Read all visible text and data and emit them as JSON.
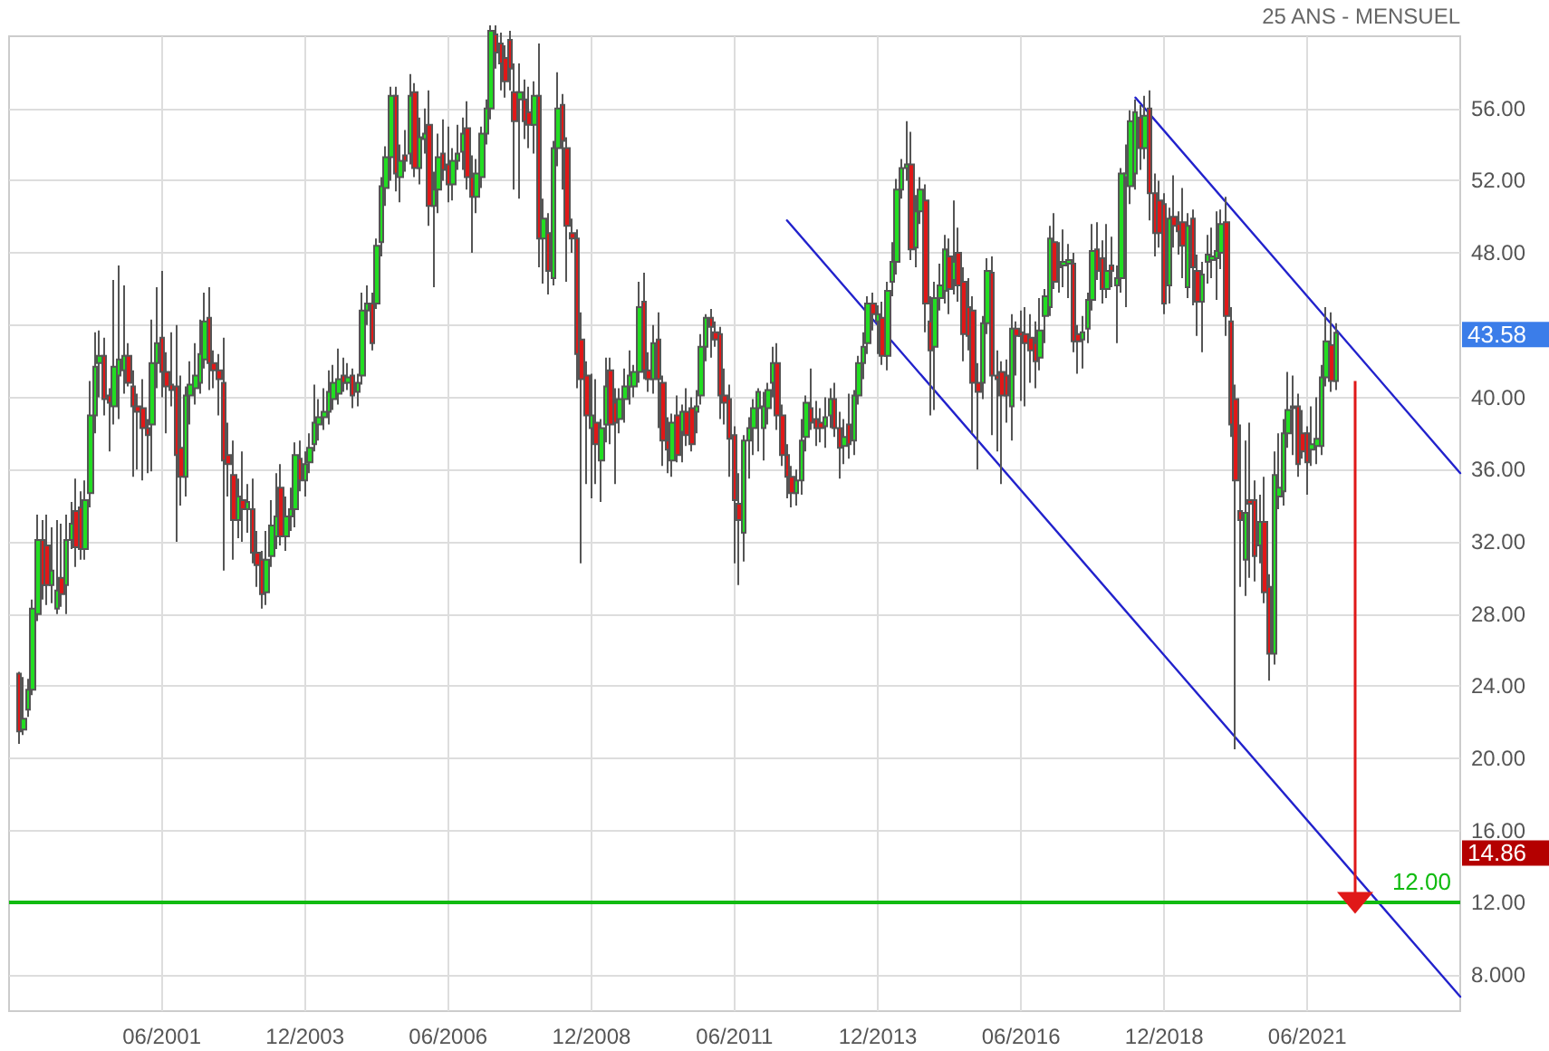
{
  "chart_data": {
    "type": "candlestick",
    "annotations": [
      "25 ANS - MENSUEL",
      "43.58",
      "14.86"
    ],
    "xlim": [
      "1998-10",
      "2024-02"
    ],
    "xticks": [
      {
        "value": "2001-06",
        "label": "06/2001"
      },
      {
        "value": "2003-12",
        "label": "12/2003"
      },
      {
        "value": "2006-06",
        "label": "06/2006"
      },
      {
        "value": "2008-12",
        "label": "12/2008"
      },
      {
        "value": "2011-06",
        "label": "06/2011"
      },
      {
        "value": "2013-12",
        "label": "12/2013"
      },
      {
        "value": "2016-06",
        "label": "06/2016"
      },
      {
        "value": "2018-12",
        "label": "12/2018"
      },
      {
        "value": "2021-06",
        "label": "06/2021"
      }
    ],
    "ylim": [
      6,
      60
    ],
    "yticks": [
      {
        "value": 8,
        "label": "8.000"
      },
      {
        "value": 12,
        "label": "12.00"
      },
      {
        "value": 16,
        "label": "16.00"
      },
      {
        "value": 20,
        "label": "20.00"
      },
      {
        "value": 24,
        "label": "24.00"
      },
      {
        "value": 28,
        "label": "28.00"
      },
      {
        "value": 32,
        "label": "32.00"
      },
      {
        "value": 36,
        "label": "36.00"
      },
      {
        "value": 40,
        "label": "40.00"
      },
      {
        "value": 44,
        "label": null
      },
      {
        "value": 48,
        "label": "48.00"
      },
      {
        "value": 52,
        "label": "52.00"
      },
      {
        "value": 56,
        "label": "56.00"
      }
    ],
    "grid": true,
    "marker": "none",
    "ref_lines": [
      {
        "axis": "y",
        "value": 12,
        "label": "12.00",
        "color": "#11bb11"
      }
    ],
    "series": [
      {
        "x": [
          "1998-12",
          "1999-01",
          "1999-02",
          "1999-03",
          "1999-04",
          "1999-05",
          "1999-06",
          "1999-07",
          "1999-08",
          "1999-09",
          "1999-10",
          "1999-11",
          "1999-12",
          "2000-01",
          "2000-02",
          "2000-03",
          "2000-04",
          "2000-05",
          "2000-06",
          "2000-07",
          "2000-08",
          "2000-09",
          "2000-10",
          "2000-11",
          "2000-12",
          "2001-01",
          "2001-02",
          "2001-03",
          "2001-04",
          "2001-05",
          "2001-06",
          "2001-07",
          "2001-08",
          "2001-09",
          "2001-10",
          "2001-11",
          "2001-12",
          "2002-01",
          "2002-02",
          "2002-03",
          "2002-04",
          "2002-05",
          "2002-06",
          "2002-07",
          "2002-08",
          "2002-09",
          "2002-10",
          "2002-11",
          "2002-12",
          "2003-01",
          "2003-02",
          "2003-03",
          "2003-04",
          "2003-05",
          "2003-06",
          "2003-07",
          "2003-08",
          "2003-09",
          "2003-10",
          "2003-11",
          "2003-12",
          "2004-01",
          "2004-02",
          "2004-03",
          "2004-04",
          "2004-05",
          "2004-06",
          "2004-07",
          "2004-08",
          "2004-09",
          "2004-10",
          "2004-11",
          "2004-12",
          "2005-01",
          "2005-02",
          "2005-03",
          "2005-04",
          "2005-05",
          "2005-06",
          "2005-07",
          "2005-08",
          "2005-09",
          "2005-10",
          "2005-11",
          "2005-12",
          "2006-01",
          "2006-02",
          "2006-03",
          "2006-04",
          "2006-05",
          "2006-06",
          "2006-07",
          "2006-08",
          "2006-09",
          "2006-10",
          "2006-11",
          "2006-12",
          "2007-01",
          "2007-02",
          "2007-03",
          "2007-04",
          "2007-05",
          "2007-06",
          "2007-07",
          "2007-08",
          "2007-09",
          "2007-10",
          "2007-11",
          "2007-12",
          "2008-01",
          "2008-02",
          "2008-03",
          "2008-04",
          "2008-05",
          "2008-06",
          "2008-07",
          "2008-08",
          "2008-09",
          "2008-10",
          "2008-11",
          "2008-12",
          "2009-01",
          "2009-02",
          "2009-03",
          "2009-04",
          "2009-05",
          "2009-06",
          "2009-07",
          "2009-08",
          "2009-09",
          "2009-10",
          "2009-11",
          "2009-12",
          "2010-01",
          "2010-02",
          "2010-03",
          "2010-04",
          "2010-05",
          "2010-06",
          "2010-07",
          "2010-08",
          "2010-09",
          "2010-10",
          "2010-11",
          "2010-12",
          "2011-01",
          "2011-02",
          "2011-03",
          "2011-04",
          "2011-05",
          "2011-06",
          "2011-07",
          "2011-08",
          "2011-09",
          "2011-10",
          "2011-11",
          "2011-12",
          "2012-01",
          "2012-02",
          "2012-03",
          "2012-04",
          "2012-05",
          "2012-06",
          "2012-07",
          "2012-08",
          "2012-09",
          "2012-10",
          "2012-11",
          "2012-12",
          "2013-01",
          "2013-02",
          "2013-03",
          "2013-04",
          "2013-05",
          "2013-06",
          "2013-07",
          "2013-08",
          "2013-09",
          "2013-10",
          "2013-11",
          "2013-12",
          "2014-01",
          "2014-02",
          "2014-03",
          "2014-04",
          "2014-05",
          "2014-06",
          "2014-07",
          "2014-08",
          "2014-09",
          "2014-10",
          "2014-11",
          "2014-12",
          "2015-01",
          "2015-02",
          "2015-03",
          "2015-04",
          "2015-05",
          "2015-06",
          "2015-07",
          "2015-08",
          "2015-09",
          "2015-10",
          "2015-11",
          "2015-12",
          "2016-01",
          "2016-02",
          "2016-03",
          "2016-04",
          "2016-05",
          "2016-06",
          "2016-07",
          "2016-08",
          "2016-09",
          "2016-10",
          "2016-11",
          "2016-12",
          "2017-01",
          "2017-02",
          "2017-03",
          "2017-04",
          "2017-05",
          "2017-06",
          "2017-07",
          "2017-08",
          "2017-09",
          "2017-10",
          "2017-11",
          "2017-12",
          "2018-01",
          "2018-02",
          "2018-03",
          "2018-04",
          "2018-05",
          "2018-06",
          "2018-07",
          "2018-08",
          "2018-09",
          "2018-10",
          "2018-11",
          "2018-12",
          "2019-01",
          "2019-02",
          "2019-03",
          "2019-04",
          "2019-05",
          "2019-06",
          "2019-07",
          "2019-08",
          "2019-09",
          "2019-10",
          "2019-11",
          "2019-12",
          "2020-01",
          "2020-02",
          "2020-03",
          "2020-04",
          "2020-05",
          "2020-06",
          "2020-07",
          "2020-08",
          "2020-09",
          "2020-10",
          "2020-11",
          "2020-12",
          "2021-01",
          "2021-02",
          "2021-03",
          "2021-04",
          "2021-05",
          "2021-06",
          "2021-07",
          "2021-08",
          "2021-09",
          "2021-10",
          "2021-11",
          "2021-12"
        ],
        "ohlc": [
          [
            24.7,
            24.8,
            20.8,
            21.5
          ],
          [
            21.6,
            24.5,
            21.3,
            22.2
          ],
          [
            22.7,
            24.4,
            22.3,
            23.8
          ],
          [
            23.8,
            28.8,
            23.5,
            28.3
          ],
          [
            28,
            33.5,
            27.6,
            32.1
          ],
          [
            32.1,
            33.2,
            28.8,
            29.6
          ],
          [
            31.8,
            33.5,
            28.5,
            29.6
          ],
          [
            29.6,
            32.8,
            28.6,
            30.4
          ],
          [
            28.3,
            33.2,
            28,
            29.3
          ],
          [
            30,
            33,
            28.4,
            29.1
          ],
          [
            29.6,
            33.5,
            28,
            32.1
          ],
          [
            32.1,
            34.2,
            31.6,
            33
          ],
          [
            33.7,
            35.5,
            30.6,
            31.7
          ],
          [
            33.9,
            34.8,
            31,
            31.6
          ],
          [
            31.6,
            35.4,
            31,
            34.3
          ],
          [
            34.7,
            40.9,
            33.9,
            39
          ],
          [
            39,
            43.6,
            38,
            41.7
          ],
          [
            41.9,
            43.7,
            40,
            42.3
          ],
          [
            42.3,
            43.3,
            39,
            39.9
          ],
          [
            40.1,
            40.5,
            37,
            39.7
          ],
          [
            39.5,
            46.5,
            38.5,
            41.7
          ],
          [
            41.2,
            47.3,
            38.8,
            42.1
          ],
          [
            41.5,
            46.2,
            40.2,
            42.3
          ],
          [
            42.3,
            43,
            40.6,
            40.8
          ],
          [
            40.6,
            41.5,
            35.6,
            39.5
          ],
          [
            39.5,
            40.2,
            36,
            39.2
          ],
          [
            39.4,
            41,
            35.4,
            38.3
          ],
          [
            38.3,
            38.8,
            35.8,
            37.9
          ],
          [
            38.5,
            44.3,
            35.9,
            41.9
          ],
          [
            41.9,
            46.1,
            40.5,
            43
          ],
          [
            43.3,
            47,
            40,
            41.4
          ],
          [
            41.4,
            42.5,
            38,
            40.6
          ],
          [
            40.7,
            43.6,
            39.5,
            40.4
          ],
          [
            40.6,
            44,
            32,
            36.8
          ],
          [
            37.2,
            41.2,
            34,
            35.6
          ],
          [
            35.6,
            40.6,
            34.5,
            40.1
          ],
          [
            40.1,
            42,
            38.5,
            40.7
          ],
          [
            40.5,
            43,
            39.6,
            41.2
          ],
          [
            40.8,
            44.3,
            40.2,
            42.4
          ],
          [
            42.1,
            45.8,
            41.6,
            44.2
          ],
          [
            44.4,
            46.1,
            40.4,
            41.9
          ],
          [
            41.9,
            42.6,
            40.5,
            41.5
          ],
          [
            41.5,
            42.4,
            39,
            41
          ],
          [
            40.8,
            43.3,
            30.4,
            36.5
          ],
          [
            36.8,
            38.6,
            34.5,
            36.3
          ],
          [
            35.7,
            37.6,
            31,
            33.2
          ],
          [
            33.2,
            35.5,
            32.2,
            34.5
          ],
          [
            34.3,
            37,
            32,
            33.8
          ],
          [
            33.8,
            35.2,
            32.5,
            34.2
          ],
          [
            33.8,
            35.5,
            30.8,
            31.4
          ],
          [
            31.4,
            32.6,
            29.5,
            30.7
          ],
          [
            31,
            31.5,
            28.3,
            29.1
          ],
          [
            29.2,
            32.6,
            28.5,
            31
          ],
          [
            31.2,
            34.3,
            30.6,
            32.9
          ],
          [
            32.3,
            35.8,
            31.6,
            33.4
          ],
          [
            35,
            36.3,
            31.8,
            32.3
          ],
          [
            32.3,
            34.5,
            31.5,
            33.4
          ],
          [
            33.4,
            35,
            32.6,
            33.8
          ],
          [
            33.8,
            37.5,
            32.8,
            36.8
          ],
          [
            36.6,
            37.6,
            34.8,
            35.4
          ],
          [
            35.4,
            37,
            34.5,
            36.3
          ],
          [
            36.4,
            38,
            35.8,
            37.2
          ],
          [
            37.4,
            40.7,
            37,
            38.6
          ],
          [
            38.5,
            39.9,
            37.6,
            38.9
          ],
          [
            38.9,
            40.5,
            38.2,
            39.2
          ],
          [
            39.2,
            41.5,
            38.5,
            40.3
          ],
          [
            39.9,
            41.8,
            39.3,
            40.8
          ],
          [
            40.2,
            42.7,
            39.6,
            41
          ],
          [
            41.2,
            42.2,
            40.3,
            40.8
          ],
          [
            40.8,
            41.9,
            40.4,
            41.1
          ],
          [
            41.2,
            41.6,
            39.4,
            40.1
          ],
          [
            40.3,
            41.3,
            39.5,
            40.8
          ],
          [
            41.2,
            45.8,
            40.7,
            44.8
          ],
          [
            44.8,
            46.2,
            44,
            45.2
          ],
          [
            45.2,
            45.8,
            42.6,
            43
          ],
          [
            45.2,
            48.8,
            44.9,
            48.4
          ],
          [
            48.6,
            52.2,
            47.8,
            51.7
          ],
          [
            51.6,
            53.9,
            50.6,
            53.3
          ],
          [
            53.3,
            57.2,
            52,
            56.7
          ],
          [
            56.7,
            57.2,
            51.4,
            52.4
          ],
          [
            52.2,
            54,
            50.8,
            53.1
          ],
          [
            53.4,
            54.8,
            52.5,
            53.1
          ],
          [
            53.5,
            57.9,
            52.9,
            56.7
          ],
          [
            56.9,
            57.4,
            52.2,
            52.7
          ],
          [
            52.7,
            55.5,
            51.8,
            54.4
          ],
          [
            54.3,
            56,
            53.5,
            54.6
          ],
          [
            55.1,
            57,
            49.5,
            50.6
          ],
          [
            50.6,
            52.5,
            46.1,
            51.5
          ],
          [
            51.5,
            54.6,
            50.2,
            53.3
          ],
          [
            53.5,
            55.4,
            52,
            52.6
          ],
          [
            52.9,
            55,
            50.8,
            51.8
          ],
          [
            51.8,
            53.8,
            50.9,
            53.1
          ],
          [
            53.1,
            55.1,
            52.6,
            53.5
          ],
          [
            53.6,
            55.5,
            52.6,
            54.6
          ],
          [
            54.9,
            56.4,
            51.5,
            52.2
          ],
          [
            52.2,
            53.4,
            48,
            51.1
          ],
          [
            51.1,
            53.2,
            50.2,
            52.4
          ],
          [
            52.2,
            55,
            51.6,
            54.6
          ],
          [
            54.6,
            56.5,
            54,
            56
          ],
          [
            56,
            60.6,
            55.4,
            60.3
          ],
          [
            60.1,
            60.6,
            58.2,
            59.1
          ],
          [
            59.6,
            60.2,
            57,
            58.5
          ],
          [
            58.8,
            59.5,
            56.6,
            57.5
          ],
          [
            59.8,
            60.3,
            57,
            58.2
          ],
          [
            56.9,
            58.5,
            51.5,
            55.3
          ],
          [
            56.5,
            58.5,
            51,
            56.9
          ],
          [
            56.5,
            57.6,
            54.3,
            55.3
          ],
          [
            55.8,
            57.2,
            53.8,
            55.1
          ],
          [
            55.1,
            57.5,
            53.5,
            56.7
          ],
          [
            56.7,
            59.6,
            47.2,
            48.8
          ],
          [
            48.8,
            51,
            46.3,
            49.9
          ],
          [
            49.1,
            50.2,
            45.7,
            47
          ],
          [
            46.6,
            54.2,
            46.2,
            53.8
          ],
          [
            53.8,
            58,
            52.8,
            56
          ],
          [
            56.2,
            56.8,
            51.5,
            54.2
          ],
          [
            53.8,
            54.4,
            46.4,
            49.5
          ],
          [
            49.1,
            49.9,
            48,
            48.8
          ],
          [
            48.8,
            49.3,
            40.5,
            42.4
          ],
          [
            43.2,
            44.7,
            30.8,
            41
          ],
          [
            41.2,
            42,
            35.2,
            39
          ],
          [
            38.3,
            41.3,
            34.4,
            39
          ],
          [
            38.6,
            41,
            35.2,
            37.4
          ],
          [
            36.5,
            38.8,
            34.2,
            38.3
          ],
          [
            38.5,
            42.2,
            37.5,
            40.6
          ],
          [
            41.5,
            42.2,
            37.4,
            38.5
          ],
          [
            39.7,
            40.5,
            35.2,
            38.6
          ],
          [
            38.8,
            40.5,
            38,
            39.9
          ],
          [
            39.9,
            41.6,
            38.6,
            40.6
          ],
          [
            40.6,
            42.6,
            39.6,
            41.2
          ],
          [
            40.6,
            41.8,
            40,
            41.4
          ],
          [
            41.4,
            46.4,
            40.8,
            45
          ],
          [
            45.3,
            46.9,
            41,
            41.5
          ],
          [
            41.5,
            42.5,
            40.3,
            41
          ],
          [
            41,
            44,
            40.2,
            43
          ],
          [
            43.2,
            44.7,
            38.3,
            41
          ],
          [
            40.8,
            41.2,
            36.2,
            37.6
          ],
          [
            37.6,
            38.9,
            35.8,
            37.1
          ],
          [
            36.5,
            39.1,
            35.6,
            38.6
          ],
          [
            39,
            40.1,
            36.4,
            36.8
          ],
          [
            38.1,
            39.6,
            36.4,
            39.2
          ],
          [
            39.2,
            40.5,
            37.3,
            37.9
          ],
          [
            39.4,
            40,
            37,
            37.4
          ],
          [
            39.2,
            40.4,
            38,
            39.5
          ],
          [
            40.1,
            43.5,
            39.6,
            42.8
          ],
          [
            42.8,
            44.6,
            42,
            44.4
          ],
          [
            44.4,
            44.9,
            42.2,
            43.9
          ],
          [
            43.6,
            44.2,
            42.8,
            43.2
          ],
          [
            43.5,
            43.9,
            38.8,
            40.1
          ],
          [
            40.1,
            41.6,
            38.5,
            39.7
          ],
          [
            39.9,
            40.7,
            35.6,
            37.7
          ],
          [
            37.9,
            38.4,
            30.8,
            34.3
          ],
          [
            34.1,
            35.8,
            29.6,
            33.2
          ],
          [
            32.5,
            37.9,
            30.9,
            37.6
          ],
          [
            37.6,
            38.9,
            35.5,
            38.3
          ],
          [
            38.3,
            39.9,
            36.8,
            39.4
          ],
          [
            39.4,
            40.5,
            37,
            40.3
          ],
          [
            38.3,
            40.3,
            36.5,
            39.5
          ],
          [
            39.4,
            40.8,
            38.5,
            40.4
          ],
          [
            40.8,
            42.8,
            40,
            41.9
          ],
          [
            41.9,
            43,
            38.2,
            39
          ],
          [
            39,
            39.6,
            36.2,
            36.8
          ],
          [
            36.8,
            37.4,
            34.4,
            35.6
          ],
          [
            35.6,
            36.2,
            33.9,
            34.7
          ],
          [
            34.7,
            36,
            34,
            35.4
          ],
          [
            35.4,
            38.8,
            34.6,
            37.6
          ],
          [
            37.8,
            40.1,
            37,
            39.7
          ],
          [
            39.4,
            41.6,
            38.2,
            38.6
          ],
          [
            38.8,
            39.8,
            37.3,
            38.3
          ],
          [
            38.6,
            39.4,
            37.5,
            38.3
          ],
          [
            38.4,
            40,
            37.2,
            38.9
          ],
          [
            39,
            40.5,
            38.3,
            39.9
          ],
          [
            39.9,
            40.8,
            37.8,
            38.3
          ],
          [
            38.3,
            39.2,
            35.5,
            37.2
          ],
          [
            37.3,
            38.8,
            36.3,
            37.8
          ],
          [
            38.5,
            40.2,
            36.6,
            37.4
          ],
          [
            37.6,
            40.4,
            36.8,
            40.1
          ],
          [
            40.1,
            42.3,
            39.6,
            41.9
          ],
          [
            41.9,
            43.6,
            41,
            42.8
          ],
          [
            43,
            45.6,
            42.4,
            45.2
          ],
          [
            45.2,
            45.8,
            43.7,
            44.6
          ],
          [
            44.2,
            45.1,
            42.4,
            44.6
          ],
          [
            44.4,
            45.3,
            41.8,
            42.3
          ],
          [
            42.3,
            46.4,
            41.5,
            45.9
          ],
          [
            46.4,
            48.6,
            45.6,
            47.5
          ],
          [
            47.5,
            52.1,
            46.8,
            51.5
          ],
          [
            51.5,
            53.2,
            51,
            52.7
          ],
          [
            52.7,
            55.3,
            52,
            52.9
          ],
          [
            52.9,
            54.7,
            47.6,
            48.2
          ],
          [
            48.3,
            51.2,
            47.2,
            50.3
          ],
          [
            50.3,
            52.2,
            49.6,
            51.5
          ],
          [
            50.9,
            51.8,
            43.6,
            45.2
          ],
          [
            44.2,
            45.6,
            39,
            42.6
          ],
          [
            42.8,
            46.4,
            39.3,
            45.5
          ],
          [
            45.5,
            47.4,
            44.8,
            46.2
          ],
          [
            45.9,
            49,
            45.2,
            48.2
          ],
          [
            47.8,
            48.8,
            44.6,
            46
          ],
          [
            46.5,
            50.9,
            45.7,
            47.5
          ],
          [
            48,
            49.4,
            45.3,
            46.2
          ],
          [
            46.4,
            47.2,
            42,
            43.5
          ],
          [
            45,
            46.6,
            42.6,
            43.4
          ],
          [
            44.8,
            45.6,
            38,
            40.8
          ],
          [
            40.8,
            41.9,
            36,
            40.3
          ],
          [
            40.8,
            44.5,
            39.9,
            44.1
          ],
          [
            44.1,
            47.7,
            43.5,
            47
          ],
          [
            46.9,
            47.8,
            37.9,
            41.2
          ],
          [
            41.2,
            42.6,
            37,
            41
          ],
          [
            41.4,
            42,
            35.2,
            40.1
          ],
          [
            41.2,
            42.1,
            38.6,
            40.1
          ],
          [
            39.5,
            44.6,
            37.6,
            43.8
          ],
          [
            43.8,
            44.2,
            41.2,
            43.4
          ],
          [
            43.6,
            44.8,
            39.8,
            43.4
          ],
          [
            43.5,
            45,
            39.5,
            43
          ],
          [
            43.3,
            44.6,
            40.8,
            42.6
          ],
          [
            43,
            44.2,
            40.5,
            42
          ],
          [
            42.2,
            45.5,
            41.5,
            43.7
          ],
          [
            44.5,
            46,
            43,
            45.6
          ],
          [
            45,
            49.5,
            44.5,
            48.8
          ],
          [
            48.6,
            50.2,
            46,
            46.4
          ],
          [
            47.2,
            48.6,
            45.8,
            47.3
          ],
          [
            47.3,
            49.3,
            46.1,
            47.5
          ],
          [
            47.4,
            48.5,
            45.5,
            47.6
          ],
          [
            47.4,
            48,
            42.5,
            43.1
          ],
          [
            43.5,
            44,
            41.3,
            43.1
          ],
          [
            43.2,
            44.5,
            41.6,
            43.6
          ],
          [
            43.8,
            45.8,
            43,
            45.4
          ],
          [
            45.4,
            49.6,
            44.8,
            48.1
          ],
          [
            48.2,
            49.7,
            46.5,
            47
          ],
          [
            47.7,
            48.7,
            45.2,
            46
          ],
          [
            46,
            49.6,
            45.5,
            47
          ],
          [
            47.3,
            48.9,
            46.1,
            47
          ],
          [
            46.2,
            47.3,
            43,
            46.6
          ],
          [
            46.6,
            52.7,
            45.8,
            52.4
          ],
          [
            52.2,
            54,
            45,
            52.4
          ],
          [
            51.7,
            55.9,
            50.7,
            55.3
          ],
          [
            52.4,
            56.5,
            51.5,
            55.8
          ],
          [
            55.5,
            56.2,
            52.6,
            53.8
          ],
          [
            53.8,
            56.7,
            53.2,
            55.6
          ],
          [
            56,
            57,
            49.8,
            51.3
          ],
          [
            51.3,
            52.4,
            47.8,
            49.1
          ],
          [
            50.9,
            52,
            48.3,
            49.1
          ],
          [
            50.7,
            51.3,
            44.6,
            45.2
          ],
          [
            46.2,
            50.5,
            45.2,
            49.9
          ],
          [
            50,
            52.3,
            48.3,
            49.5
          ],
          [
            49.6,
            50.3,
            47.9,
            49.2
          ],
          [
            49.7,
            51.6,
            46.6,
            48.4
          ],
          [
            46.1,
            50.2,
            45.5,
            49.5
          ],
          [
            49.9,
            50.4,
            45.1,
            47.2
          ],
          [
            47,
            47.9,
            43.4,
            45.3
          ],
          [
            45.3,
            47.5,
            42.5,
            46.8
          ],
          [
            47.5,
            49,
            46.3,
            47.9
          ],
          [
            47.6,
            49.4,
            46.6,
            47.8
          ],
          [
            47.7,
            50.3,
            45.4,
            48.1
          ],
          [
            48,
            50.4,
            47.1,
            49.6
          ],
          [
            49.7,
            51.1,
            43.4,
            44.5
          ],
          [
            44.2,
            45,
            37.8,
            38.5
          ],
          [
            39.9,
            40.7,
            20.5,
            35.4
          ],
          [
            33.7,
            38.5,
            29.5,
            33.2
          ],
          [
            31,
            37.6,
            29,
            33.6
          ],
          [
            34.3,
            38.6,
            30,
            34.1
          ],
          [
            34.3,
            35.4,
            29.8,
            31.2
          ],
          [
            31.8,
            34.6,
            30.8,
            33.1
          ],
          [
            33.1,
            35.6,
            28.6,
            29.2
          ],
          [
            29.5,
            30.2,
            24.3,
            25.8
          ],
          [
            25.8,
            37,
            25.2,
            35.7
          ],
          [
            34.5,
            38,
            33.8,
            35
          ],
          [
            34.8,
            38.8,
            34,
            38
          ],
          [
            38,
            41.4,
            37.2,
            39.3
          ],
          [
            39.4,
            41.2,
            36.8,
            39.5
          ],
          [
            39.5,
            40.2,
            35.6,
            36.3
          ],
          [
            38,
            39.3,
            36.6,
            37
          ],
          [
            38,
            38.4,
            34.6,
            36.4
          ],
          [
            37.1,
            39.5,
            36.2,
            37.4
          ],
          [
            37.3,
            40,
            36.3,
            37.7
          ],
          [
            37.3,
            41.8,
            36.8,
            41.1
          ],
          [
            41.1,
            45,
            40.6,
            43.1
          ],
          [
            42.9,
            44.7,
            40.3,
            40.9
          ],
          [
            40.9,
            44.1,
            40.4,
            43.58
          ]
        ]
      },
      {
        "type": "line",
        "color": "#2222cc",
        "x": [
          "2018-06",
          "2024-02"
        ],
        "values": [
          56.6,
          35.8
        ]
      },
      {
        "type": "line",
        "color": "#2222cc",
        "x": [
          "2012-05",
          "2024-02"
        ],
        "values": [
          49.8,
          6.8
        ]
      }
    ]
  }
}
